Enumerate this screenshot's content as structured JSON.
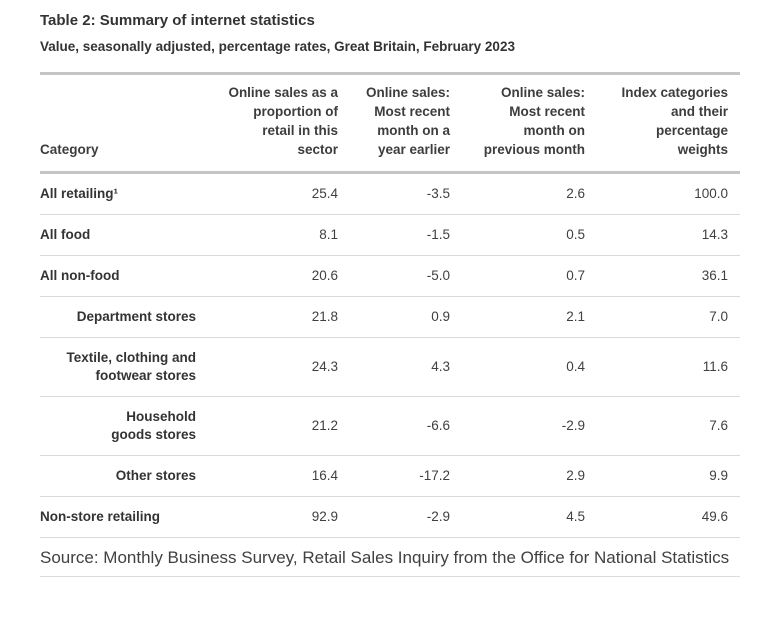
{
  "page": {
    "title": "Table 2: Summary of internet statistics",
    "subtitle": "Value, seasonally adjusted, percentage rates, Great Britain, February 2023",
    "source": "Source: Monthly Business Survey, Retail Sales Inquiry from the Office for National Statistics"
  },
  "table": {
    "columns": [
      {
        "label": "Category"
      },
      {
        "label": "Online sales as a\nproportion of\nretail in this\nsector"
      },
      {
        "label": "Online sales:\nMost recent\nmonth on a\nyear earlier"
      },
      {
        "label": "Online sales:\nMost recent\nmonth on\nprevious month"
      },
      {
        "label": "Index categories\nand their\npercentage\nweights"
      }
    ],
    "rows": [
      {
        "category": "All retailing¹",
        "level": "top",
        "values": [
          "25.4",
          "-3.5",
          "2.6",
          "100.0"
        ]
      },
      {
        "category": "All food",
        "level": "top",
        "values": [
          "8.1",
          "-1.5",
          "0.5",
          "14.3"
        ]
      },
      {
        "category": "All non-food",
        "level": "top",
        "values": [
          "20.6",
          "-5.0",
          "0.7",
          "36.1"
        ]
      },
      {
        "category": "Department stores",
        "level": "sub",
        "values": [
          "21.8",
          "0.9",
          "2.1",
          "7.0"
        ]
      },
      {
        "category": "Textile, clothing and\nfootwear stores",
        "level": "sub",
        "values": [
          "24.3",
          "4.3",
          "0.4",
          "11.6"
        ]
      },
      {
        "category": "Household\ngoods stores",
        "level": "sub",
        "values": [
          "21.2",
          "-6.6",
          "-2.9",
          "7.6"
        ]
      },
      {
        "category": "Other stores",
        "level": "sub",
        "values": [
          "16.4",
          "-17.2",
          "2.9",
          "9.9"
        ]
      },
      {
        "category": "Non-store retailing",
        "level": "top",
        "values": [
          "92.9",
          "-2.9",
          "4.5",
          "49.6"
        ]
      }
    ]
  },
  "colors": {
    "heading_text": "#333333",
    "body_text": "#404040",
    "source_text": "#414042",
    "thick_border": "#c5c5c5",
    "row_divider": "#d9d9d9"
  }
}
